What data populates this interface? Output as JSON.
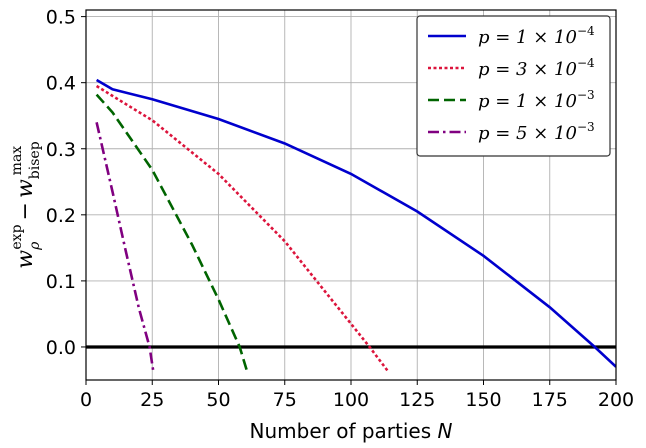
{
  "chart_data": {
    "type": "line",
    "title": "",
    "xlabel": "Number of parties N",
    "ylabel": "w_ρ^exp − w_bisep^max",
    "xlim": [
      0,
      200
    ],
    "ylim": [
      -0.05,
      0.51
    ],
    "xticks": [
      0,
      25,
      50,
      75,
      100,
      125,
      150,
      175,
      200
    ],
    "yticks": [
      0.0,
      0.1,
      0.2,
      0.3,
      0.4,
      0.5
    ],
    "xtick_labels": [
      "0",
      "25",
      "50",
      "75",
      "100",
      "125",
      "150",
      "175",
      "200"
    ],
    "ytick_labels": [
      "0.0",
      "0.1",
      "0.2",
      "0.3",
      "0.4",
      "0.5"
    ],
    "grid": true,
    "legend_position": "top-right",
    "hline": {
      "y": 0.0,
      "color": "#000000"
    },
    "series": [
      {
        "name": "p = 1 × 10^−4",
        "color": "#0000cd",
        "style": "solid",
        "x": [
          4,
          10,
          25,
          50,
          75,
          100,
          125,
          150,
          175,
          192,
          200
        ],
        "y": [
          0.404,
          0.39,
          0.375,
          0.345,
          0.308,
          0.262,
          0.205,
          0.138,
          0.06,
          0.0,
          -0.03
        ]
      },
      {
        "name": "p = 3 × 10^−4",
        "color": "#dc143c",
        "style": "dotted",
        "x": [
          4,
          10,
          25,
          50,
          75,
          90,
          100,
          107,
          114
        ],
        "y": [
          0.395,
          0.38,
          0.343,
          0.262,
          0.16,
          0.085,
          0.035,
          0.0,
          -0.037
        ]
      },
      {
        "name": "p = 1 × 10^−3",
        "color": "#006400",
        "style": "dashed",
        "x": [
          4,
          10,
          25,
          40,
          50,
          58,
          61
        ],
        "y": [
          0.382,
          0.355,
          0.268,
          0.155,
          0.072,
          0.0,
          -0.04
        ]
      },
      {
        "name": "p = 5 × 10^−3",
        "color": "#800080",
        "style": "dashdot",
        "x": [
          4,
          10,
          15,
          20,
          24,
          25.5
        ],
        "y": [
          0.34,
          0.235,
          0.145,
          0.058,
          0.0,
          -0.04
        ]
      }
    ],
    "legend": [
      {
        "base": "p = 1 × 10",
        "exp": "−4"
      },
      {
        "base": "p = 3 × 10",
        "exp": "−4"
      },
      {
        "base": "p = 1 × 10",
        "exp": "−3"
      },
      {
        "base": "p = 5 × 10",
        "exp": "−3"
      }
    ],
    "ylabel_parts": {
      "w": "w",
      "rho_sub": "ρ",
      "exp_sup": "exp",
      "minus": "−",
      "bisep_sub": "bisep",
      "max_sup": "max"
    },
    "xlabel_parts": {
      "text": "Number of parties ",
      "var": "N"
    }
  }
}
